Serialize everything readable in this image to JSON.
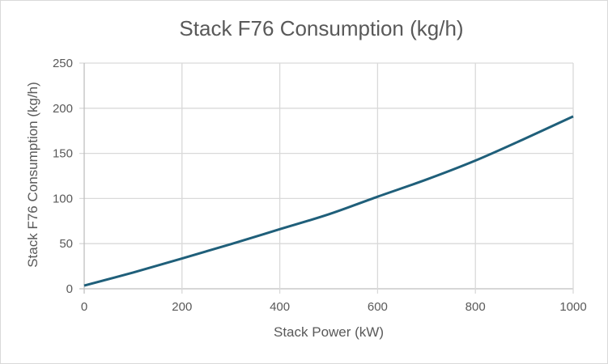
{
  "chart_data": {
    "type": "line",
    "title": "Stack F76 Consumption (kg/h)",
    "xlabel": "Stack Power (kW)",
    "ylabel": "Stack F76 Consumption (kg/h)",
    "xlim": [
      0,
      1000
    ],
    "ylim": [
      0,
      250
    ],
    "xticks": [
      0,
      200,
      400,
      600,
      800,
      1000
    ],
    "yticks": [
      0,
      50,
      100,
      150,
      200,
      250
    ],
    "grid": true,
    "legend": "none",
    "series": [
      {
        "name": "Stack F76 Consumption",
        "color": "#1f5f7a",
        "x": [
          0,
          100,
          200,
          300,
          400,
          500,
          600,
          700,
          800,
          900,
          1000
        ],
        "y": [
          3.5,
          18,
          33.5,
          49.5,
          66,
          82.5,
          102,
          121,
          142,
          166,
          191
        ]
      }
    ]
  }
}
